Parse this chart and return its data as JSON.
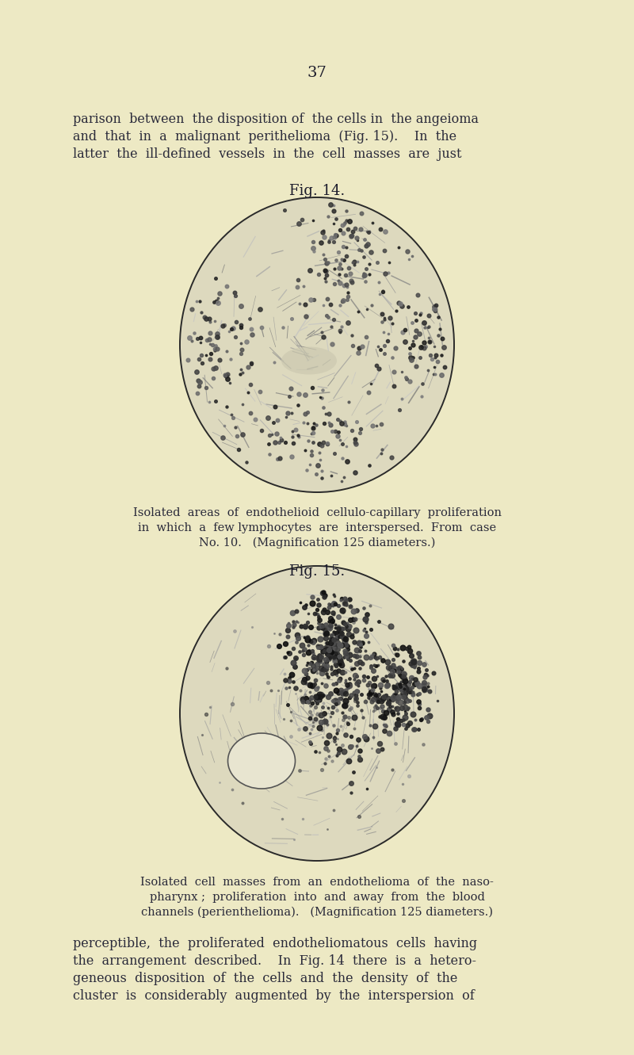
{
  "background_color": "#ede9c4",
  "page_number": "37",
  "top_text_line1": "parison  between  the disposition of  the cells in  the angeioma",
  "top_text_line2": "and  that  in  a  malignant  perithelioma  (Fig. 15).    In  the",
  "top_text_line3": "latter  the  ill-defined  vessels  in  the  cell  masses  are  just",
  "fig14_label": "Fig. 14.",
  "fig14_caption_line1": "Isolated  areas  of  endothelioid  cellulo-capillary  proliferation",
  "fig14_caption_line2": "in  which  a  few lymphocytes  are  interspersed.  From  case",
  "fig14_caption_line3": "No. 10.   (Magnification 125 diameters.)",
  "fig15_label": "Fig. 15.",
  "fig15_caption_line1": "Isolated  cell  masses  from  an  endothelioma  of  the  naso-",
  "fig15_caption_line2": "pharynx ;  proliferation  into  and  away  from  the  blood",
  "fig15_caption_line3": "channels (perienthelioma).   (Magnification 125 diameters.)",
  "bottom_text_line1": "perceptible,  the  proliferated  endotheliomatous  cells  having",
  "bottom_text_line2": "the  arrangement  described.    In  Fig. 14  there  is  a  hetero-",
  "bottom_text_line3": "geneous  disposition  of  the  cells  and  the  density  of  the",
  "bottom_text_line4": "cluster  is  considerably  augmented  by  the  interspersion  of",
  "text_color": "#2a2a3a",
  "fig_label_color": "#1a1a2a",
  "image_border_color": "#2a2a2a",
  "img_bg_color": "#ddd9be"
}
